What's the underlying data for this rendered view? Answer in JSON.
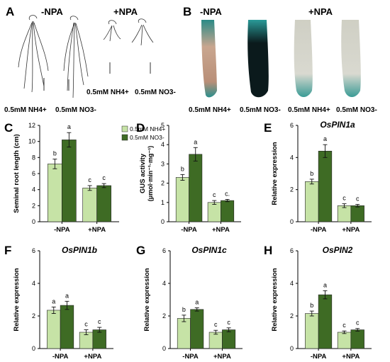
{
  "colors": {
    "light": "#c6e3a6",
    "dark": "#3e6b24",
    "axis": "#000000",
    "root_stain": "#2a8f8c",
    "root_dark": "#0b1a1c"
  },
  "panels": {
    "A": {
      "letter": "A",
      "neg": "-NPA",
      "pos": "+NPA",
      "img_labels": [
        "0.5mM NH4+",
        "0.5mM NO3-",
        "0.5mM NH4+",
        "0.5mM NO3-"
      ]
    },
    "B": {
      "letter": "B",
      "neg": "-NPA",
      "pos": "+NPA",
      "img_labels": [
        "0.5mM NH4+",
        "0.5mM NO3-",
        "0.5mM NH4+",
        "0.5mM NO3-"
      ]
    }
  },
  "chart_data": [
    {
      "letter": "C",
      "type": "bar",
      "title": "",
      "ylabel": "Seminal root length (cm)",
      "ylim": [
        0,
        12
      ],
      "yticks": [
        0,
        2,
        4,
        6,
        8,
        10,
        12
      ],
      "categories": [
        "-NPA",
        "+NPA"
      ],
      "legend": [
        "0.5mM NH4+",
        "0.5mM NO3-"
      ],
      "series": [
        {
          "name": "0.5mM NH4+",
          "values": [
            7.2,
            4.2
          ],
          "errors": [
            0.6,
            0.3
          ],
          "letters": [
            "b",
            "c"
          ]
        },
        {
          "name": "0.5mM NO3-",
          "values": [
            10.2,
            4.5
          ],
          "errors": [
            0.9,
            0.25
          ],
          "letters": [
            "a",
            "c"
          ]
        }
      ]
    },
    {
      "letter": "D",
      "type": "bar",
      "title": "",
      "ylabel": "GUS activity",
      "ylabel2": "(μmol·min⁻¹·mg⁻¹)",
      "ylim": [
        0,
        5
      ],
      "yticks": [
        0,
        1,
        2,
        3,
        4,
        5
      ],
      "categories": [
        "-NPA",
        "+NPA"
      ],
      "series": [
        {
          "name": "0.5mM NH4+",
          "values": [
            2.3,
            1.0
          ],
          "errors": [
            0.15,
            0.1
          ],
          "letters": [
            "b",
            "c"
          ]
        },
        {
          "name": "0.5mM NO3-",
          "values": [
            3.5,
            1.1
          ],
          "errors": [
            0.35,
            0.06
          ],
          "letters": [
            "a",
            "c."
          ]
        }
      ]
    },
    {
      "letter": "E",
      "type": "bar",
      "title": "OsPIN1a",
      "ylabel": "Relative expression",
      "ylim": [
        0,
        6
      ],
      "yticks": [
        0,
        2,
        4,
        6
      ],
      "categories": [
        "-NPA",
        "+NPA"
      ],
      "series": [
        {
          "name": "0.5mM NH4+",
          "values": [
            2.5,
            1.0
          ],
          "errors": [
            0.15,
            0.12
          ],
          "letters": [
            "b",
            "c"
          ]
        },
        {
          "name": "0.5mM NO3-",
          "values": [
            4.4,
            1.0
          ],
          "errors": [
            0.4,
            0.08
          ],
          "letters": [
            "a",
            "c"
          ]
        }
      ]
    },
    {
      "letter": "F",
      "type": "bar",
      "title": "OsPIN1b",
      "ylabel": "Relative expression",
      "ylim": [
        0,
        6
      ],
      "yticks": [
        0,
        2,
        4,
        6
      ],
      "categories": [
        "-NPA",
        "+NPA"
      ],
      "series": [
        {
          "name": "0.5mM NH4+",
          "values": [
            2.35,
            1.0
          ],
          "errors": [
            0.2,
            0.15
          ],
          "letters": [
            "a",
            "c"
          ]
        },
        {
          "name": "0.5mM NO3-",
          "values": [
            2.65,
            1.15
          ],
          "errors": [
            0.25,
            0.15
          ],
          "letters": [
            "a",
            "c"
          ]
        }
      ]
    },
    {
      "letter": "G",
      "type": "bar",
      "title": "OsPIN1c",
      "ylabel": "Relative expression",
      "ylim": [
        0,
        6
      ],
      "yticks": [
        0,
        2,
        4,
        6
      ],
      "categories": [
        "-NPA",
        "+NPA"
      ],
      "series": [
        {
          "name": "0.5mM NH4+",
          "values": [
            1.85,
            1.0
          ],
          "errors": [
            0.2,
            0.12
          ],
          "letters": [
            "b",
            "c"
          ]
        },
        {
          "name": "0.5mM NO3-",
          "values": [
            2.4,
            1.15
          ],
          "errors": [
            0.1,
            0.12
          ],
          "letters": [
            "a",
            "c"
          ]
        }
      ]
    },
    {
      "letter": "H",
      "type": "bar",
      "title": "OsPIN2",
      "ylabel": "Relative expression",
      "ylim": [
        0,
        6
      ],
      "yticks": [
        0,
        2,
        4,
        6
      ],
      "categories": [
        "-NPA",
        "+NPA"
      ],
      "series": [
        {
          "name": "0.5mM NH4+",
          "values": [
            2.15,
            1.0
          ],
          "errors": [
            0.15,
            0.08
          ],
          "letters": [
            "b",
            "c"
          ]
        },
        {
          "name": "0.5mM NO3-",
          "values": [
            3.3,
            1.15
          ],
          "errors": [
            0.25,
            0.08
          ],
          "letters": [
            "a",
            "c"
          ]
        }
      ]
    }
  ]
}
